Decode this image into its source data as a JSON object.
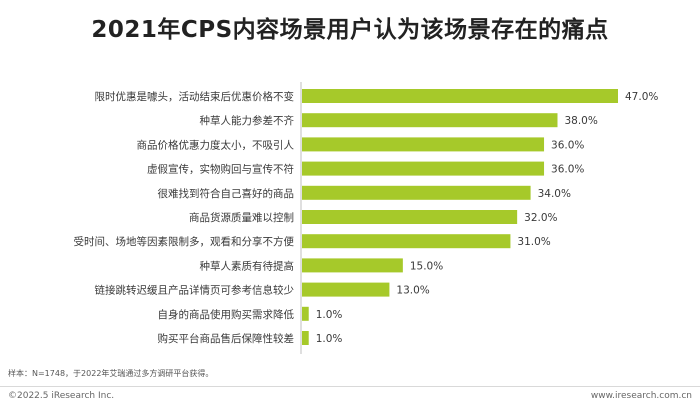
{
  "chart_data": {
    "type": "bar",
    "orientation": "horizontal",
    "title": "2021年CPS内容场景用户认为该场景存在的痛点",
    "categories": [
      "限时优惠是噱头，活动结束后优惠价格不变",
      "种草人能力参差不齐",
      "商品价格优惠力度太小，不吸引人",
      "虚假宣传，实物购回与宣传不符",
      "很难找到符合自己喜好的商品",
      "商品货源质量难以控制",
      "受时间、场地等因素限制多，观看和分享不方便",
      "种草人素质有待提高",
      "链接跳转迟缓且产品详情页可参考信息较少",
      "自身的商品使用购买需求降低",
      "购买平台商品售后保障性较差"
    ],
    "values": [
      47.0,
      38.0,
      36.0,
      36.0,
      34.0,
      32.0,
      31.0,
      15.0,
      13.0,
      1.0,
      1.0
    ],
    "value_labels": [
      "47.0%",
      "38.0%",
      "36.0%",
      "36.0%",
      "34.0%",
      "32.0%",
      "31.0%",
      "15.0%",
      "13.0%",
      "1.0%",
      "1.0%"
    ],
    "xlim": [
      0,
      47
    ],
    "bar_color": "#a6c92a",
    "axis_color": "#bfbfbf",
    "grid": false,
    "legend": "none"
  },
  "footer": {
    "note": "样本：N=1748，于2022年艾瑞通过多方调研平台获得。",
    "copyright": "©2022.5 iResearch Inc.",
    "website": "www.iresearch.com.cn"
  }
}
